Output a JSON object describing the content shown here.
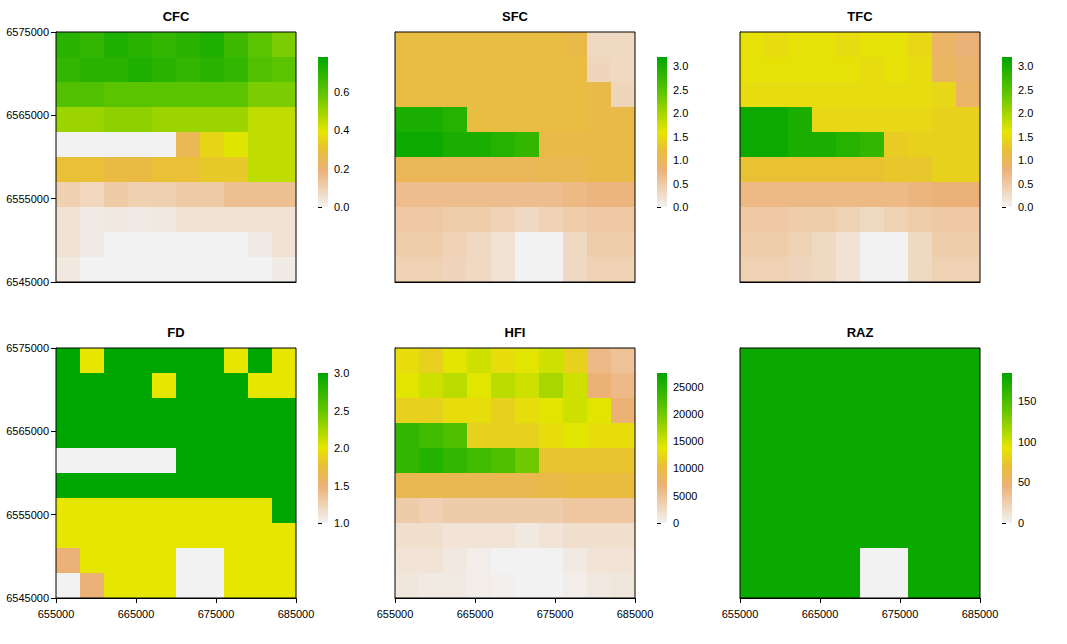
{
  "chart_data": [
    {
      "type": "heatmap",
      "title": "CFC",
      "tick_labels": "y",
      "grid": false,
      "xlim": [
        655000,
        685000
      ],
      "ylim": [
        6545000,
        6575000
      ],
      "xticks": [
        655000,
        665000,
        675000,
        685000
      ],
      "yticks": [
        6545000,
        6555000,
        6565000,
        6575000
      ],
      "x": [
        656500,
        659500,
        662500,
        665500,
        668500,
        671500,
        674500,
        677500,
        680500,
        683500
      ],
      "y": [
        6573500,
        6570500,
        6567500,
        6564500,
        6561500,
        6558500,
        6555500,
        6552500,
        6549500,
        6546500
      ],
      "cells": [
        [
          0.7,
          0.68,
          0.72,
          0.7,
          0.68,
          0.7,
          0.72,
          0.66,
          0.6,
          0.55
        ],
        [
          0.68,
          0.7,
          0.7,
          0.72,
          0.7,
          0.68,
          0.7,
          0.68,
          0.62,
          0.6
        ],
        [
          0.62,
          0.62,
          0.6,
          0.6,
          0.6,
          0.6,
          0.6,
          0.6,
          0.55,
          0.55
        ],
        [
          0.5,
          0.5,
          0.52,
          0.52,
          0.5,
          0.5,
          0.5,
          0.5,
          0.45,
          0.45
        ],
        [
          0,
          0,
          0,
          0,
          0,
          0.25,
          0.35,
          0.4,
          0.45,
          0.45
        ],
        [
          0.3,
          0.3,
          0.28,
          0.28,
          0.3,
          0.3,
          0.32,
          0.32,
          0.45,
          0.45
        ],
        [
          0.1,
          0.08,
          0.12,
          0.1,
          0.1,
          0.12,
          0.12,
          0.15,
          0.15,
          0.15
        ],
        [
          0.05,
          0.02,
          0.03,
          0.02,
          0.03,
          0.05,
          0.05,
          0.05,
          0.05,
          0.05
        ],
        [
          0.05,
          0.02,
          0,
          0,
          0,
          0,
          0,
          0,
          0.02,
          0.05
        ],
        [
          0.03,
          0,
          0,
          0,
          0,
          0,
          0,
          0,
          0,
          0.02
        ]
      ],
      "colorbar_lim": [
        0,
        0.78
      ],
      "colorbar_ticks": [
        {
          "value": 0,
          "label": "0.0"
        },
        0.2,
        0.4,
        0.6
      ]
    },
    {
      "type": "heatmap",
      "title": "SFC",
      "tick_labels": false,
      "grid": false,
      "xlim": [
        655000,
        685000
      ],
      "ylim": [
        6545000,
        6575000
      ],
      "xticks": [
        655000,
        665000,
        675000,
        685000
      ],
      "yticks": [
        6545000,
        6555000,
        6565000,
        6575000
      ],
      "x": [
        656500,
        659500,
        662500,
        665500,
        668500,
        671500,
        674500,
        677500,
        680500,
        683500
      ],
      "y": [
        6573500,
        6570500,
        6567500,
        6564500,
        6561500,
        6558500,
        6555500,
        6552500,
        6549500,
        6546500
      ],
      "cells": [
        [
          1.15,
          1.15,
          1.15,
          1.15,
          1.15,
          1.15,
          1.15,
          1.1,
          0.3,
          0.3
        ],
        [
          1.15,
          1.15,
          1.15,
          1.15,
          1.15,
          1.15,
          1.15,
          1.15,
          0.35,
          0.3
        ],
        [
          1.15,
          1.15,
          1.15,
          1.15,
          1.15,
          1.15,
          1.15,
          1.15,
          1.1,
          0.35
        ],
        [
          3.0,
          3.0,
          2.9,
          1.15,
          1.15,
          1.15,
          1.15,
          1.15,
          1.1,
          1.1
        ],
        [
          3.1,
          3.1,
          3.0,
          3.0,
          2.9,
          2.8,
          1.1,
          1.1,
          1.1,
          1.1
        ],
        [
          1.0,
          1.0,
          1.0,
          1.0,
          1.0,
          1.0,
          1.05,
          1.05,
          1.1,
          1.1
        ],
        [
          0.65,
          0.65,
          0.65,
          0.65,
          0.65,
          0.65,
          0.65,
          0.7,
          0.75,
          0.75
        ],
        [
          0.5,
          0.5,
          0.45,
          0.45,
          0.4,
          0.3,
          0.4,
          0.45,
          0.5,
          0.5
        ],
        [
          0.45,
          0.45,
          0.4,
          0.3,
          0.2,
          0,
          0,
          0.3,
          0.45,
          0.45
        ],
        [
          0.4,
          0.4,
          0.35,
          0.3,
          0.2,
          0,
          0,
          0.3,
          0.4,
          0.4
        ]
      ],
      "colorbar_lim": [
        0,
        3.2
      ],
      "colorbar_ticks": [
        {
          "value": 0,
          "label": "0.0"
        },
        0.5,
        {
          "value": 1,
          "label": "1.0"
        },
        1.5,
        {
          "value": 2,
          "label": "2.0"
        },
        2.5,
        {
          "value": 3,
          "label": "3.0"
        }
      ]
    },
    {
      "type": "heatmap",
      "title": "TFC",
      "tick_labels": false,
      "grid": false,
      "xlim": [
        655000,
        685000
      ],
      "ylim": [
        6545000,
        6575000
      ],
      "xticks": [
        655000,
        665000,
        675000,
        685000
      ],
      "yticks": [
        6545000,
        6555000,
        6565000,
        6575000
      ],
      "x": [
        656500,
        659500,
        662500,
        665500,
        668500,
        671500,
        674500,
        677500,
        680500,
        683500
      ],
      "y": [
        6573500,
        6570500,
        6567500,
        6564500,
        6561500,
        6558500,
        6555500,
        6552500,
        6549500,
        6546500
      ],
      "cells": [
        [
          1.55,
          1.5,
          1.55,
          1.55,
          1.5,
          1.55,
          1.55,
          1.45,
          0.9,
          0.8
        ],
        [
          1.55,
          1.55,
          1.55,
          1.55,
          1.55,
          1.5,
          1.55,
          1.5,
          0.95,
          0.85
        ],
        [
          1.5,
          1.5,
          1.5,
          1.5,
          1.5,
          1.5,
          1.5,
          1.5,
          1.45,
          0.9
        ],
        [
          3.1,
          3.1,
          3.0,
          1.45,
          1.45,
          1.45,
          1.45,
          1.45,
          1.4,
          1.4
        ],
        [
          3.1,
          3.1,
          3.0,
          3.0,
          2.9,
          2.8,
          1.35,
          1.4,
          1.4,
          1.4
        ],
        [
          1.25,
          1.25,
          1.25,
          1.25,
          1.25,
          1.25,
          1.3,
          1.3,
          1.4,
          1.4
        ],
        [
          0.7,
          0.7,
          0.7,
          0.7,
          0.7,
          0.7,
          0.7,
          0.75,
          0.8,
          0.8
        ],
        [
          0.5,
          0.5,
          0.45,
          0.45,
          0.4,
          0.3,
          0.4,
          0.45,
          0.5,
          0.5
        ],
        [
          0.45,
          0.45,
          0.4,
          0.3,
          0.2,
          0,
          0,
          0.3,
          0.45,
          0.45
        ],
        [
          0.4,
          0.4,
          0.35,
          0.3,
          0.2,
          0,
          0,
          0.3,
          0.4,
          0.4
        ]
      ],
      "colorbar_lim": [
        0,
        3.2
      ],
      "colorbar_ticks": [
        {
          "value": 0,
          "label": "0.0"
        },
        0.5,
        {
          "value": 1,
          "label": "1.0"
        },
        1.5,
        {
          "value": 2,
          "label": "2.0"
        },
        2.5,
        {
          "value": 3,
          "label": "3.0"
        }
      ]
    },
    {
      "type": "heatmap",
      "title": "FD",
      "tick_labels": true,
      "grid": false,
      "xlim": [
        655000,
        685000
      ],
      "ylim": [
        6545000,
        6575000
      ],
      "xticks": [
        655000,
        665000,
        675000,
        685000
      ],
      "yticks": [
        6545000,
        6555000,
        6565000,
        6575000
      ],
      "x": [
        656500,
        659500,
        662500,
        665500,
        668500,
        671500,
        674500,
        677500,
        680500,
        683500
      ],
      "y": [
        6573500,
        6570500,
        6567500,
        6564500,
        6561500,
        6558500,
        6555500,
        6552500,
        6549500,
        6546500
      ],
      "cells": [
        [
          3,
          2,
          3,
          3,
          3,
          3,
          3,
          2,
          3,
          2
        ],
        [
          3,
          3,
          3,
          3,
          2,
          3,
          3,
          3,
          2,
          2
        ],
        [
          3,
          3,
          3,
          3,
          3,
          3,
          3,
          3,
          3,
          3
        ],
        [
          3,
          3,
          3,
          3,
          3,
          3,
          3,
          3,
          3,
          3
        ],
        [
          1,
          1,
          1,
          1,
          1,
          3,
          3,
          3,
          3,
          3
        ],
        [
          3,
          3,
          3,
          3,
          3,
          3,
          3,
          3,
          3,
          3
        ],
        [
          2,
          2,
          2,
          2,
          2,
          2,
          2,
          2,
          2,
          3
        ],
        [
          2,
          2,
          2,
          2,
          2,
          2,
          2,
          2,
          2,
          2
        ],
        [
          1.5,
          2,
          2,
          2,
          2,
          1,
          1,
          2,
          2,
          2
        ],
        [
          1,
          1.5,
          2,
          2,
          2,
          1,
          1,
          2,
          2,
          2
        ]
      ],
      "colorbar_lim": [
        1,
        3
      ],
      "colorbar_ticks": [
        {
          "value": 1,
          "label": "1.0"
        },
        1.5,
        {
          "value": 2,
          "label": "2.0"
        },
        2.5,
        {
          "value": 3,
          "label": "3.0"
        }
      ]
    },
    {
      "type": "heatmap",
      "title": "HFI",
      "tick_labels": "x",
      "grid": false,
      "xlim": [
        655000,
        685000
      ],
      "ylim": [
        6545000,
        6575000
      ],
      "xticks": [
        655000,
        665000,
        675000,
        685000
      ],
      "yticks": [
        6545000,
        6555000,
        6565000,
        6575000
      ],
      "x": [
        656500,
        659500,
        662500,
        665500,
        668500,
        671500,
        674500,
        677500,
        680500,
        683500
      ],
      "y": [
        6573500,
        6570500,
        6567500,
        6564500,
        6561500,
        6558500,
        6555500,
        6552500,
        6549500,
        6546500
      ],
      "cells": [
        [
          13000,
          12000,
          14000,
          15000,
          13000,
          14000,
          15000,
          12000,
          6000,
          5000
        ],
        [
          14000,
          15000,
          16000,
          14000,
          16000,
          15000,
          17000,
          15000,
          7000,
          6000
        ],
        [
          12000,
          12000,
          13000,
          13000,
          12000,
          13000,
          14000,
          15000,
          14000,
          7000
        ],
        [
          24000,
          23000,
          22000,
          12000,
          12000,
          12000,
          13000,
          14000,
          13000,
          13000
        ],
        [
          24000,
          25000,
          24000,
          23000,
          22000,
          20000,
          11000,
          11000,
          11000,
          11000
        ],
        [
          9000,
          9000,
          9000,
          9000,
          9000,
          9000,
          9500,
          10000,
          10000,
          10000
        ],
        [
          4000,
          3500,
          4000,
          4000,
          4000,
          4000,
          4000,
          4500,
          4500,
          4500
        ],
        [
          2000,
          2000,
          1500,
          1500,
          1500,
          1000,
          1500,
          2000,
          2000,
          2000
        ],
        [
          1500,
          1500,
          1000,
          500,
          0,
          0,
          0,
          800,
          1500,
          1500
        ],
        [
          1200,
          800,
          800,
          500,
          300,
          0,
          0,
          500,
          1000,
          1200
        ]
      ],
      "colorbar_lim": [
        0,
        27500
      ],
      "colorbar_ticks": [
        0,
        5000,
        10000,
        15000,
        20000,
        25000
      ]
    },
    {
      "type": "heatmap",
      "title": "RAZ",
      "tick_labels": "x",
      "grid": false,
      "xlim": [
        655000,
        685000
      ],
      "ylim": [
        6545000,
        6575000
      ],
      "xticks": [
        655000,
        665000,
        675000,
        685000
      ],
      "yticks": [
        6545000,
        6555000,
        6565000,
        6575000
      ],
      "x": [
        656500,
        659500,
        662500,
        665500,
        668500,
        671500,
        674500,
        677500,
        680500,
        683500
      ],
      "y": [
        6573500,
        6570500,
        6567500,
        6564500,
        6561500,
        6558500,
        6555500,
        6552500,
        6549500,
        6546500
      ],
      "cells": [
        [
          180,
          180,
          180,
          180,
          180,
          180,
          180,
          180,
          180,
          180
        ],
        [
          180,
          180,
          180,
          180,
          180,
          180,
          180,
          180,
          180,
          180
        ],
        [
          180,
          180,
          180,
          180,
          180,
          180,
          180,
          180,
          180,
          180
        ],
        [
          180,
          180,
          180,
          180,
          180,
          180,
          180,
          180,
          180,
          180
        ],
        [
          180,
          180,
          180,
          180,
          180,
          180,
          180,
          180,
          180,
          180
        ],
        [
          180,
          180,
          180,
          180,
          180,
          180,
          180,
          180,
          180,
          180
        ],
        [
          180,
          180,
          180,
          180,
          180,
          180,
          180,
          180,
          180,
          180
        ],
        [
          180,
          180,
          180,
          180,
          180,
          180,
          180,
          180,
          180,
          180
        ],
        [
          180,
          180,
          180,
          180,
          180,
          0,
          0,
          180,
          180,
          180
        ],
        [
          180,
          180,
          180,
          180,
          180,
          0,
          0,
          180,
          180,
          180
        ]
      ],
      "colorbar_lim": [
        0,
        185
      ],
      "colorbar_ticks": [
        0,
        50,
        100,
        150
      ]
    }
  ]
}
